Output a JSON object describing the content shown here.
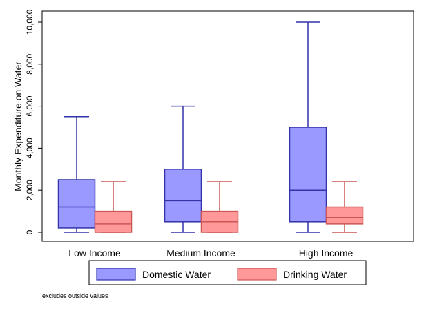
{
  "chart_data": {
    "type": "boxplot",
    "ylabel": "Monthly Expenditure on Water",
    "ylim": [
      0,
      10500
    ],
    "yticks": [
      0,
      2000,
      4000,
      6000,
      8000,
      10000
    ],
    "ytick_labels": [
      "0",
      "2,000",
      "4,000",
      "6,000",
      "8,000",
      "10,000"
    ],
    "categories": [
      "Low Income",
      "Medium Income",
      "High Income"
    ],
    "series": [
      {
        "name": "Domestic Water",
        "color": "#9999ff",
        "edge": "#3333aa",
        "boxes": [
          {
            "whisker_low": 0,
            "q1": 200,
            "median": 1200,
            "q3": 2500,
            "whisker_high": 5500
          },
          {
            "whisker_low": 0,
            "q1": 500,
            "median": 1500,
            "q3": 3000,
            "whisker_high": 6000
          },
          {
            "whisker_low": 0,
            "q1": 500,
            "median": 2000,
            "q3": 5000,
            "whisker_high": 10000
          }
        ]
      },
      {
        "name": "Drinking Water",
        "color": "#ff9999",
        "edge": "#cc5555",
        "boxes": [
          {
            "whisker_low": 0,
            "q1": 0,
            "median": 400,
            "q3": 1000,
            "whisker_high": 2400
          },
          {
            "whisker_low": 0,
            "q1": 0,
            "median": 500,
            "q3": 1000,
            "whisker_high": 2400
          },
          {
            "whisker_low": 0,
            "q1": 400,
            "median": 700,
            "q3": 1200,
            "whisker_high": 2400
          }
        ]
      }
    ],
    "legend": {
      "position": "bottom"
    },
    "grid": false,
    "note": "excludes outside values"
  }
}
